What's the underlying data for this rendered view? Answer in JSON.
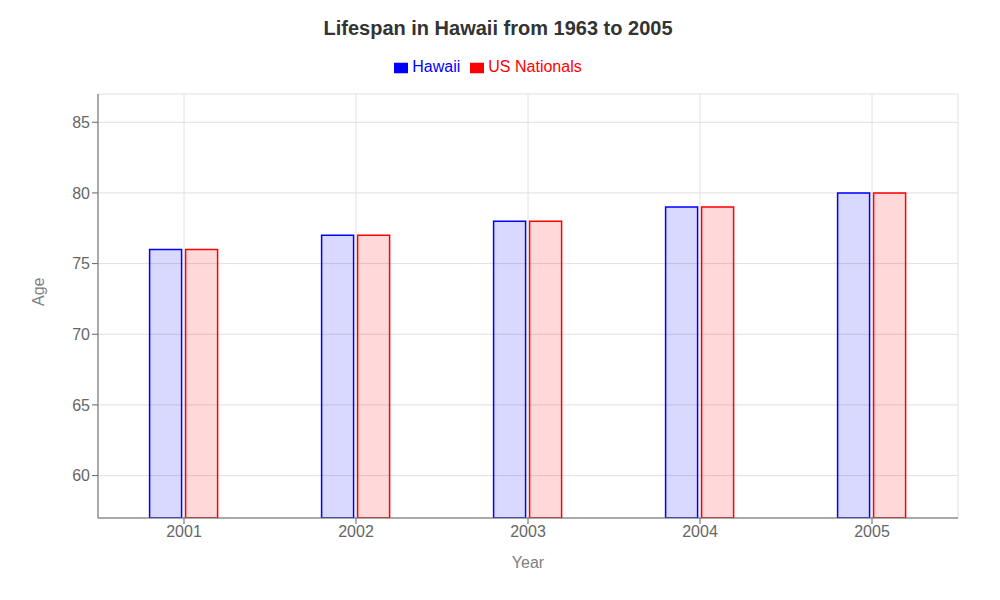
{
  "chart_data": {
    "type": "bar",
    "title": "Lifespan in Hawaii from 1963 to 2005",
    "xlabel": "Year",
    "ylabel": "Age",
    "categories": [
      "2001",
      "2002",
      "2003",
      "2004",
      "2005"
    ],
    "series": [
      {
        "name": "Hawaii",
        "color": "#0000ff",
        "values": [
          76,
          77,
          78,
          79,
          80
        ]
      },
      {
        "name": "US Nationals",
        "color": "#ff0000",
        "values": [
          76,
          77,
          78,
          79,
          80
        ]
      }
    ],
    "ylim": [
      57,
      87
    ],
    "yticks": [
      60,
      65,
      70,
      75,
      80,
      85
    ],
    "grid": true,
    "legend": "top"
  }
}
